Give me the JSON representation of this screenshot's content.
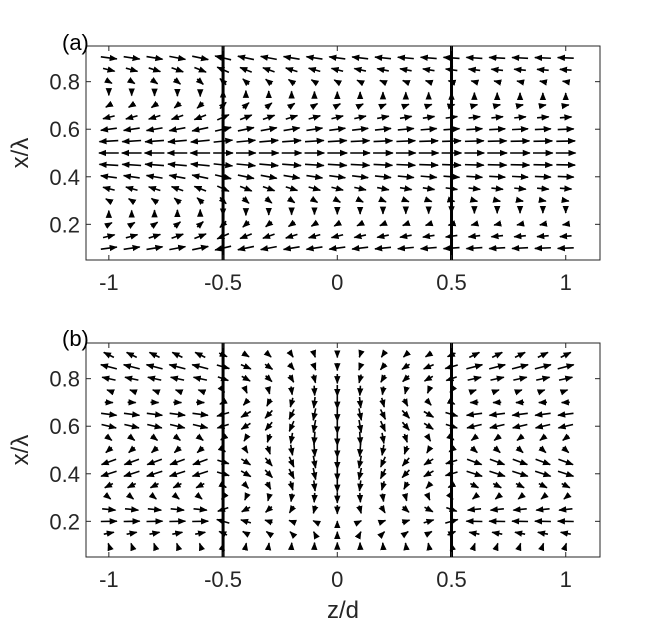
{
  "chart_data": [
    {
      "type": "quiver",
      "panel_label": "(a)",
      "xlabel": "",
      "ylabel": "x/λ",
      "xlim": [
        -1.1,
        1.15
      ],
      "ylim": [
        0.05,
        0.95
      ],
      "x_ticks": [
        -1,
        -0.5,
        0,
        0.5,
        1
      ],
      "x_tick_labels": [
        "-1",
        "-0.5",
        "0",
        "0.5",
        "1"
      ],
      "y_ticks": [
        0.2,
        0.4,
        0.6,
        0.8
      ],
      "y_tick_labels": [
        "0.2",
        "0.4",
        "0.6",
        "0.8"
      ],
      "interfaces": [
        -0.5,
        0.5
      ],
      "grid": false,
      "field_description": "horizontal arrows along z; strongest near x=0.5, converging toward z=-0.5 at x=0.5",
      "z_samples": {
        "start": -1.0,
        "end": 1.0,
        "count": 21
      },
      "x_samples": {
        "start": 0.1,
        "end": 0.9,
        "count": 17
      }
    },
    {
      "type": "quiver",
      "panel_label": "(b)",
      "xlabel": "z/d",
      "ylabel": "x/λ",
      "xlim": [
        -1.1,
        1.15
      ],
      "ylim": [
        0.05,
        0.95
      ],
      "x_ticks": [
        -1,
        -0.5,
        0,
        0.5,
        1
      ],
      "x_tick_labels": [
        "-1",
        "-0.5",
        "0",
        "0.5",
        "1"
      ],
      "y_ticks": [
        0.2,
        0.4,
        0.6,
        0.8
      ],
      "y_tick_labels": [
        "0.2",
        "0.4",
        "0.6",
        "0.8"
      ],
      "interfaces": [
        -0.5,
        0.5
      ],
      "grid": false,
      "field_description": "arrows converging toward interfaces at x≈0.21; mostly vertical near z=0",
      "z_samples": {
        "start": -1.0,
        "end": 1.0,
        "count": 21
      },
      "x_samples": {
        "start": 0.1,
        "end": 0.9,
        "count": 17
      }
    }
  ]
}
